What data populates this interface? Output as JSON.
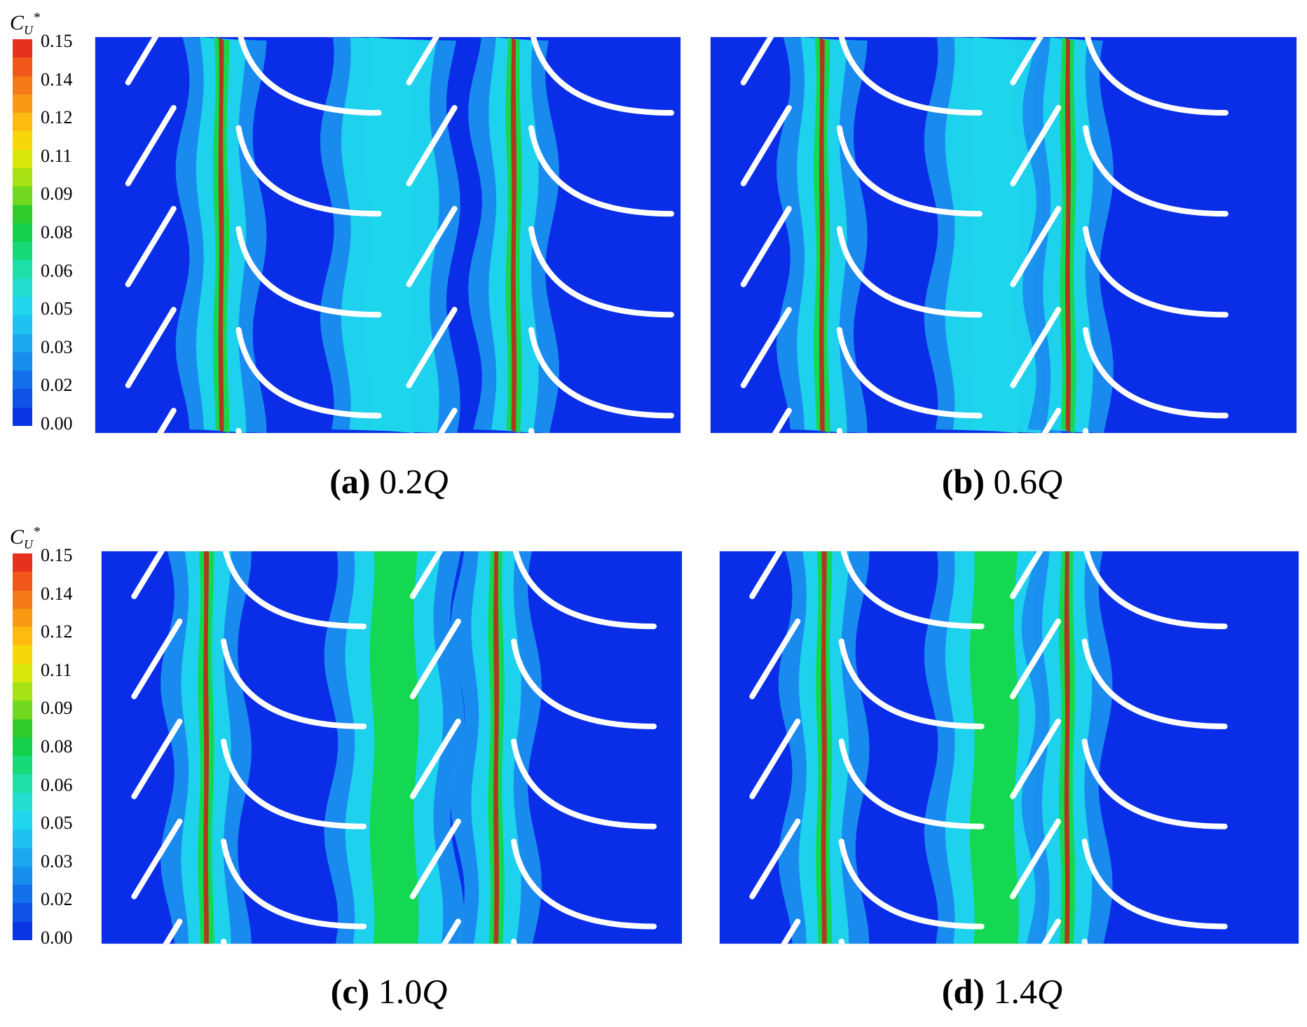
{
  "legend": {
    "symbol": "C",
    "subscript": "U",
    "superscript": "*",
    "ticks": [
      "0.15",
      "0.14",
      "0.12",
      "0.11",
      "0.09",
      "0.08",
      "0.06",
      "0.05",
      "0.03",
      "0.02",
      "0.00"
    ],
    "colors": [
      "#e8311c",
      "#f1561a",
      "#f47a18",
      "#f89a12",
      "#fdbb10",
      "#f6d80a",
      "#d9e70a",
      "#a6e214",
      "#6fd81f",
      "#2fcb2c",
      "#13d04c",
      "#18d97a",
      "#1ce0a8",
      "#22dfd0",
      "#1fd6ec",
      "#1dc2f0",
      "#1aa8ee",
      "#168eec",
      "#1271ea",
      "#0f54e6",
      "#0b34e2"
    ]
  },
  "panels": [
    {
      "tag": "(a)",
      "value": "0.2",
      "unit": "Q"
    },
    {
      "tag": "(b)",
      "value": "0.6",
      "unit": "Q"
    },
    {
      "tag": "(c)",
      "value": "1.0",
      "unit": "Q"
    },
    {
      "tag": "(d)",
      "value": "1.4",
      "unit": "Q"
    }
  ],
  "colors": {
    "background_flow": "#0a2ee8",
    "wake_light": "#1fd6ec",
    "wake_mid": "#1a8fee",
    "wake_green": "#14d84a",
    "wake_core": "#b8301a",
    "blade": "#ffffff"
  }
}
